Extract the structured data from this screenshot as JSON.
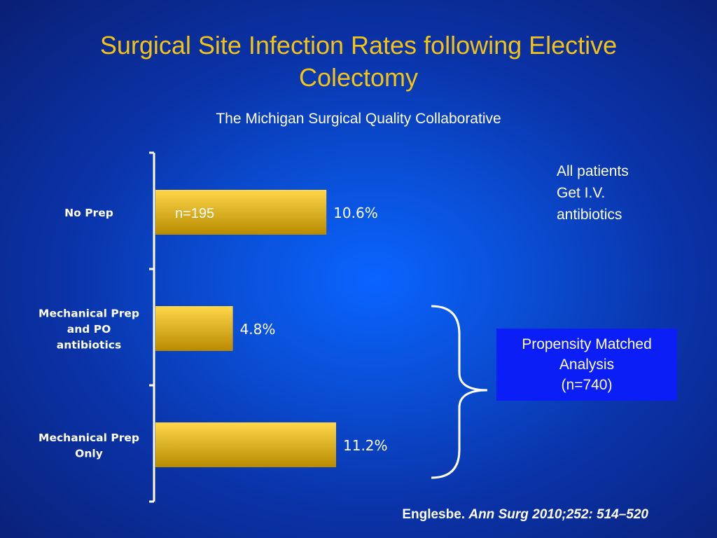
{
  "slide": {
    "title": "Surgical Site Infection Rates following Elective Colectomy",
    "subtitle": "The Michigan Surgical Quality Collaborative",
    "note_lines": [
      "All patients",
      "Get I.V.",
      "antibiotics"
    ],
    "matched_box": {
      "lines": [
        "Propensity Matched",
        "Analysis",
        "(n=740)"
      ]
    },
    "citation": {
      "author": "Englesbe.",
      "reference": "Ann Surg 2010;252: 514–520"
    }
  },
  "chart_data": {
    "type": "bar",
    "orientation": "horizontal",
    "categories": [
      [
        "No Prep"
      ],
      [
        "Mechanical Prep",
        "and PO",
        "antibiotics"
      ],
      [
        "Mechanical Prep",
        "Only"
      ]
    ],
    "values": [
      10.6,
      4.8,
      11.2
    ],
    "value_labels": [
      "10.6%",
      "4.8%",
      "11.2%"
    ],
    "bar_annotations": [
      "n=195",
      "",
      ""
    ],
    "unit": "%",
    "xlim": [
      0,
      11.2
    ],
    "grid": false,
    "colors": {
      "bar_top": "#ffd84a",
      "bar_bottom": "#b88a00",
      "axis": "#ffffff",
      "text": "#ffffff"
    }
  }
}
